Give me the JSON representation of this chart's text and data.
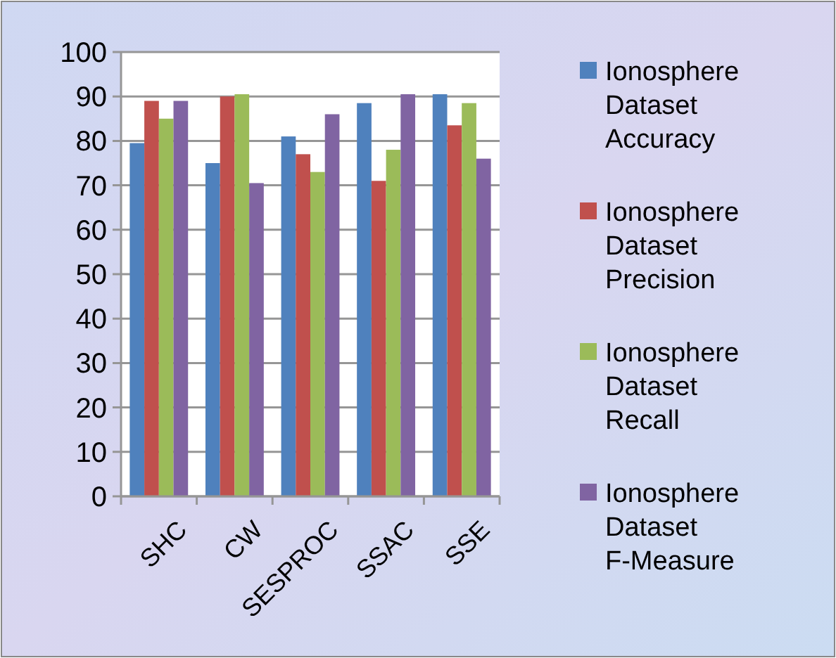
{
  "chart_data": {
    "type": "bar",
    "categories": [
      "SHC",
      "CW",
      "SESPROC",
      "SSAC",
      "SSE"
    ],
    "series": [
      {
        "name": "Ionosphere Dataset Accuracy",
        "color": "#4f81bd",
        "values": [
          79.5,
          75,
          81,
          88.5,
          90.5
        ]
      },
      {
        "name": "Ionosphere Dataset Precision",
        "color": "#c0504d",
        "values": [
          89,
          90,
          77,
          71,
          83.5
        ]
      },
      {
        "name": "Ionosphere Dataset Recall",
        "color": "#9bbb59",
        "values": [
          85,
          90.5,
          73,
          78,
          88.5
        ]
      },
      {
        "name": "Ionosphere Dataset F-Measure",
        "color": "#8064a2",
        "values": [
          89,
          70.5,
          86,
          90.5,
          76
        ]
      }
    ],
    "ylim": [
      0,
      100
    ],
    "yticks": [
      0,
      10,
      20,
      30,
      40,
      50,
      60,
      70,
      80,
      90,
      100
    ],
    "grid": "y",
    "legend": "right"
  }
}
